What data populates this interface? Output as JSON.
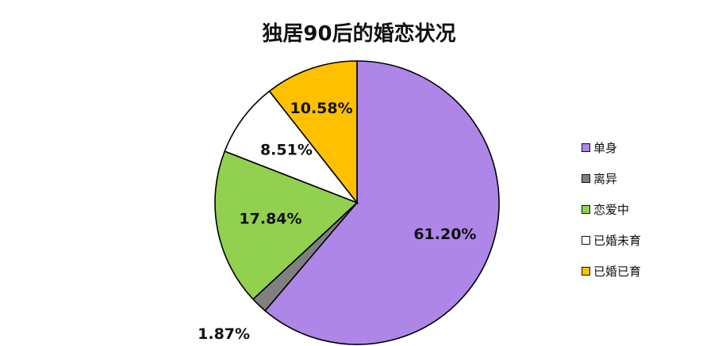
{
  "chart_data": {
    "type": "pie",
    "title": "独居90后的婚恋状况",
    "categories": [
      "单身",
      "离异",
      "恋爱中",
      "已婚未育",
      "已婚已育"
    ],
    "values": [
      61.2,
      1.87,
      17.84,
      8.51,
      10.58
    ],
    "labels": [
      "61.20%",
      "1.87%",
      "17.84%",
      "8.51%",
      "10.58%"
    ],
    "colors": [
      "#ad86e8",
      "#808080",
      "#92d050",
      "#ffffff",
      "#ffc000"
    ],
    "start": "12 o'clock",
    "direction": "clockwise",
    "legend_position": "right"
  }
}
